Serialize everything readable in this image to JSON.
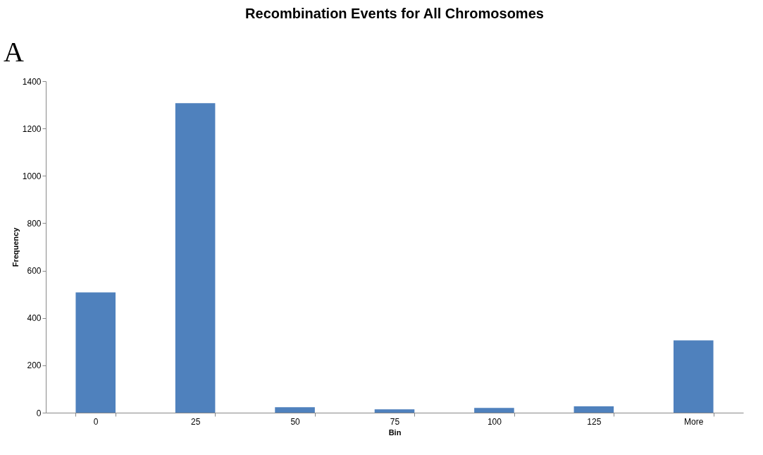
{
  "chart_data": {
    "type": "bar",
    "title": "Recombination Events for All Chromosomes",
    "xlabel": "Bin",
    "ylabel": "Frequency",
    "categories": [
      "0",
      "25",
      "50",
      "75",
      "100",
      "125",
      "More"
    ],
    "values": [
      508,
      1307,
      23,
      14,
      20,
      27,
      305
    ],
    "color": "#4f81bd",
    "ylim": [
      0,
      1400
    ],
    "yticks": [
      0,
      200,
      400,
      600,
      800,
      1000,
      1200,
      1400
    ],
    "grid": false,
    "annotations": [
      "A"
    ]
  }
}
